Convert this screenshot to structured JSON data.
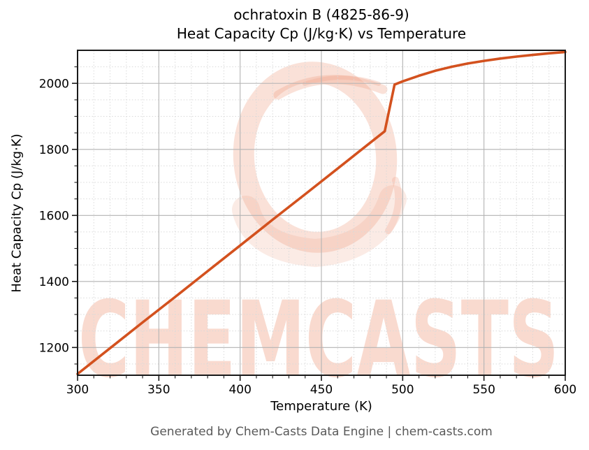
{
  "header": {
    "title_line1": "ochratoxin B (4825-86-9)",
    "title_line2": "Heat Capacity Cp (J/kg·K) vs Temperature"
  },
  "footer": {
    "credit": "Generated by Chem-Casts Data Engine | chem-casts.com"
  },
  "watermark": {
    "text": "CHEMCASTS",
    "icon": "brush-circle-logo",
    "color": "#efa287"
  },
  "colors": {
    "background": "#ffffff",
    "line": "#d3511e",
    "major_grid": "#b3b3b3",
    "minor_grid": "#d9d9d9",
    "spine": "#1a1a1a",
    "tick_label": "#000000",
    "footer_text": "#595959"
  },
  "chart_data": {
    "type": "line",
    "title": "ochratoxin B (4825-86-9) — Heat Capacity Cp (J/kg·K) vs Temperature",
    "xlabel": "Temperature (K)",
    "ylabel": "Heat Capacity Cp (J/kg·K)",
    "xlim": [
      300,
      600
    ],
    "ylim": [
      1116,
      2100
    ],
    "x_major_ticks": [
      300,
      350,
      400,
      450,
      500,
      550,
      600
    ],
    "y_major_ticks": [
      1200,
      1400,
      1600,
      1800,
      2000
    ],
    "x_minor_step": 10,
    "y_minor_step": 50,
    "grid": {
      "major": "solid",
      "minor": "dotted"
    },
    "series": [
      {
        "name": "Heat Capacity Cp",
        "color": "#d3511e",
        "points": [
          [
            300,
            1120
          ],
          [
            320,
            1198
          ],
          [
            340,
            1276
          ],
          [
            360,
            1353
          ],
          [
            380,
            1431
          ],
          [
            400,
            1509
          ],
          [
            420,
            1587
          ],
          [
            440,
            1664
          ],
          [
            460,
            1742
          ],
          [
            480,
            1820
          ],
          [
            489,
            1855
          ],
          [
            495,
            1996
          ],
          [
            500,
            2006
          ],
          [
            510,
            2023
          ],
          [
            520,
            2038
          ],
          [
            530,
            2050
          ],
          [
            540,
            2060
          ],
          [
            550,
            2068
          ],
          [
            560,
            2075
          ],
          [
            570,
            2081
          ],
          [
            580,
            2086
          ],
          [
            590,
            2091
          ],
          [
            600,
            2095
          ]
        ]
      }
    ]
  }
}
